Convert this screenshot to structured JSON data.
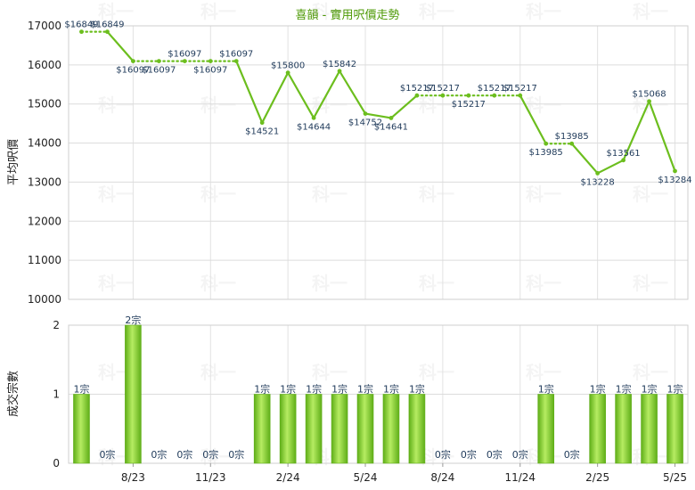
{
  "chart_data": [
    {
      "type": "line",
      "title": "喜韻 - 實用呎價走勢",
      "ylabel": "平均呎價",
      "ylim": [
        10000,
        17000
      ],
      "yticks": [
        10000,
        11000,
        12000,
        13000,
        14000,
        15000,
        16000,
        17000
      ],
      "values": [
        16849,
        16849,
        16097,
        16097,
        16097,
        16097,
        16097,
        14521,
        15800,
        14644,
        15842,
        14752,
        14641,
        15217,
        15217,
        15217,
        15217,
        15217,
        13985,
        13985,
        13228,
        13561,
        15068,
        13284
      ],
      "labels": [
        "$16849",
        "$16849",
        "$16097",
        "$16097",
        "$16097",
        "$16097",
        "$16097",
        "$14521",
        "$15800",
        "$14644",
        "$15842",
        "$14752",
        "$14641",
        "$15217",
        "$15217",
        "$15217",
        "$15217",
        "$15217",
        "$13985",
        "$13985",
        "$13228",
        "$13561",
        "$15068",
        "$13284"
      ],
      "color": "#6cbe1e"
    },
    {
      "type": "bar",
      "ylabel": "成交宗數",
      "ylim": [
        0,
        2
      ],
      "yticks": [
        0,
        1,
        2
      ],
      "values": [
        1,
        0,
        2,
        0,
        0,
        0,
        0,
        1,
        1,
        1,
        1,
        1,
        1,
        1,
        0,
        0,
        0,
        0,
        1,
        0,
        1,
        1,
        1,
        1
      ],
      "labels": [
        "1宗",
        "0宗",
        "2宗",
        "0宗",
        "0宗",
        "0宗",
        "0宗",
        "1宗",
        "1宗",
        "1宗",
        "1宗",
        "1宗",
        "1宗",
        "1宗",
        "0宗",
        "0宗",
        "0宗",
        "0宗",
        "1宗",
        "0宗",
        "1宗",
        "1宗",
        "1宗",
        "1宗"
      ],
      "categories": [
        "8/23",
        "11/23",
        "2/24",
        "5/24",
        "8/24",
        "11/24",
        "2/25",
        "5/25"
      ],
      "color": "#7cc52a"
    }
  ],
  "watermark": "科一"
}
